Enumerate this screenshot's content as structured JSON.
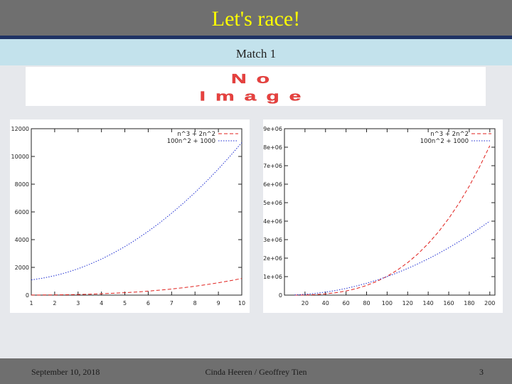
{
  "slide": {
    "title": "Let's race!",
    "subtitle": "Match 1",
    "placeholder_text": "No Image",
    "colors": {
      "title": "#ffff00",
      "title_bar": "#6f6f6f",
      "subtitle_bar": "#c3e2ec",
      "placeholder_red": "#e8413f"
    },
    "footer": {
      "date": "September 10, 2018",
      "author": "Cinda Heeren / Geoffrey Tien",
      "page": "3"
    }
  },
  "chart_data": [
    {
      "type": "line",
      "xlim": [
        1,
        10
      ],
      "ylim": [
        0,
        12000
      ],
      "x_ticks": [
        "1",
        "2",
        "3",
        "4",
        "5",
        "6",
        "7",
        "8",
        "9",
        "10"
      ],
      "y_ticks": [
        "0",
        "2000",
        "4000",
        "6000",
        "8000",
        "10000",
        "12000"
      ],
      "legend_position": "top-right",
      "series": [
        {
          "name": "n^3 + 2n^2",
          "color": "#e0201c",
          "dash": "dashed",
          "x": [
            1,
            1.5,
            2,
            2.5,
            3,
            3.5,
            4,
            4.5,
            5,
            5.5,
            6,
            6.5,
            7,
            7.5,
            8,
            8.5,
            9,
            9.5,
            10
          ],
          "y": [
            3,
            7.9,
            16,
            28.1,
            45,
            67.4,
            96,
            131.6,
            175,
            227,
            288,
            358.2,
            441,
            534.4,
            640,
            758.6,
            891,
            1038,
            1200
          ]
        },
        {
          "name": "100n^2 + 1000",
          "color": "#1c2bd0",
          "dash": "dotted",
          "x": [
            1,
            1.5,
            2,
            2.5,
            3,
            3.5,
            4,
            4.5,
            5,
            5.5,
            6,
            6.5,
            7,
            7.5,
            8,
            8.5,
            9,
            9.5,
            10
          ],
          "y": [
            1100,
            1225,
            1400,
            1625,
            1900,
            2225,
            2600,
            3025,
            3500,
            4025,
            4600,
            5225,
            5900,
            6625,
            7400,
            8225,
            9100,
            10025,
            11000
          ]
        }
      ]
    },
    {
      "type": "line",
      "xlim": [
        0,
        205
      ],
      "ylim": [
        0,
        9000000
      ],
      "x_ticks": [
        "20",
        "40",
        "60",
        "80",
        "100",
        "120",
        "140",
        "160",
        "180",
        "200"
      ],
      "y_ticks": [
        "0",
        "1e+06",
        "2e+06",
        "3e+06",
        "4e+06",
        "5e+06",
        "6e+06",
        "7e+06",
        "8e+06",
        "9e+06"
      ],
      "legend_position": "top-right",
      "series": [
        {
          "name": "n^3 + 2n^2",
          "color": "#e0201c",
          "dash": "dashed",
          "x": [
            10,
            20,
            30,
            40,
            50,
            60,
            70,
            80,
            90,
            100,
            110,
            120,
            130,
            140,
            150,
            160,
            170,
            180,
            190,
            200
          ],
          "y": [
            1200,
            8800,
            28800,
            67200,
            130000,
            223200,
            352800,
            524800,
            745200,
            1020000,
            1355200,
            1756800,
            2230800,
            2783200,
            3420000,
            4147200,
            4970800,
            5896800,
            6931200,
            8080000
          ]
        },
        {
          "name": "100n^2 + 1000",
          "color": "#1c2bd0",
          "dash": "dotted",
          "x": [
            10,
            20,
            30,
            40,
            50,
            60,
            70,
            80,
            90,
            100,
            110,
            120,
            130,
            140,
            150,
            160,
            170,
            180,
            190,
            200
          ],
          "y": [
            11000,
            41000,
            91000,
            161000,
            251000,
            361000,
            491000,
            641000,
            811000,
            1001000,
            1211000,
            1441000,
            1691000,
            1961000,
            2251000,
            2561000,
            2891000,
            3241000,
            3611000,
            4001000
          ]
        }
      ]
    }
  ]
}
